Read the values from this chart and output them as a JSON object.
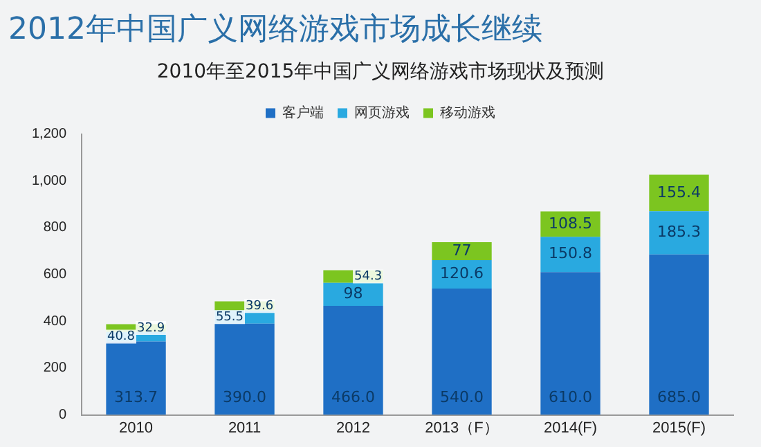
{
  "chart_data": {
    "type": "bar",
    "stacked": true,
    "title": "2012年中国广义网络游戏市场成长继续",
    "subtitle": "2010年至2015年中国广义网络游戏市场现状及预测",
    "categories": [
      "2010",
      "2011",
      "2012",
      "2013（F）",
      "2014(F)",
      "2015(F)"
    ],
    "series": [
      {
        "name": "客户端",
        "color": "#1f6fc5",
        "values": [
          313.7,
          390.0,
          466.0,
          540.0,
          610.0,
          685.0
        ],
        "value_labels": [
          "313.7",
          "390.0",
          "466.0",
          "540.0",
          "610.0",
          "685.0"
        ]
      },
      {
        "name": "网页游戏",
        "color": "#29a9e0",
        "values": [
          40.8,
          55.5,
          98,
          120.6,
          150.8,
          185.3
        ],
        "value_labels": [
          "40.8",
          "55.5",
          "98",
          "120.6",
          "150.8",
          "185.3"
        ]
      },
      {
        "name": "移动游戏",
        "color": "#7cc520",
        "values": [
          32.9,
          39.6,
          54.3,
          77,
          108.5,
          155.4
        ],
        "value_labels": [
          "32.9",
          "39.6",
          "54.3",
          "77",
          "108.5",
          "155.4"
        ]
      }
    ],
    "ylim": [
      0,
      1200
    ],
    "yticks": [
      0,
      200,
      400,
      600,
      800,
      {
        "value": 1000,
        "label": "1,000"
      },
      {
        "value": 1200,
        "label": "1,200"
      }
    ],
    "grid": false,
    "legend": "top"
  }
}
